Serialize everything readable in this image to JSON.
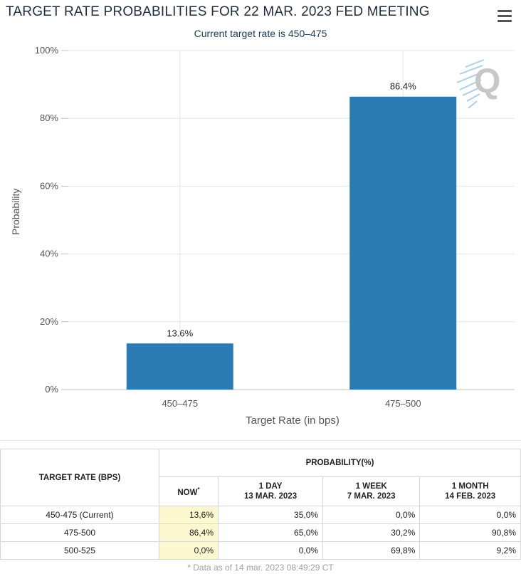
{
  "header": {
    "title": "TARGET RATE PROBABILITIES FOR 22 MAR. 2023 FED MEETING",
    "subtitle": "Current target rate is 450–475",
    "menu_icon": "hamburger-menu-icon"
  },
  "chart_data": {
    "type": "bar",
    "title": "TARGET RATE PROBABILITIES FOR 22 MAR. 2023 FED MEETING",
    "subtitle": "Current target rate is 450–475",
    "categories": [
      "450–475",
      "475–500"
    ],
    "values": [
      13.6,
      86.4
    ],
    "value_labels": [
      "13.6%",
      "86.4%"
    ],
    "xlabel": "Target Rate (in bps)",
    "ylabel": "Probability",
    "ylim": [
      0,
      100
    ],
    "yticks": [
      "0%",
      "20%",
      "40%",
      "60%",
      "80%",
      "100%"
    ],
    "ytick_values": [
      0,
      20,
      40,
      60,
      80,
      100
    ],
    "grid": true,
    "bar_color": "#2b7bb4"
  },
  "table": {
    "rate_header": "TARGET RATE (BPS)",
    "group_header": "PROBABILITY(%)",
    "columns": [
      {
        "line1": "NOW",
        "sup": "*",
        "line2": ""
      },
      {
        "line1": "1 DAY",
        "line2": "13 MAR. 2023"
      },
      {
        "line1": "1 WEEK",
        "line2": "7 MAR. 2023"
      },
      {
        "line1": "1 MONTH",
        "line2": "14 FEB. 2023"
      }
    ],
    "rows": [
      {
        "rate": "450-475 (Current)",
        "values": [
          "13,6%",
          "35,0%",
          "0,0%",
          "0,0%"
        ]
      },
      {
        "rate": "475-500",
        "values": [
          "86,4%",
          "65,0%",
          "30,2%",
          "90,8%"
        ]
      },
      {
        "rate": "500-525",
        "values": [
          "0,0%",
          "0,0%",
          "69,8%",
          "9,2%"
        ]
      }
    ],
    "highlight_color": "#fbf7cf"
  },
  "footnote": "* Data as of 14 mar. 2023 08:49:29 CT"
}
